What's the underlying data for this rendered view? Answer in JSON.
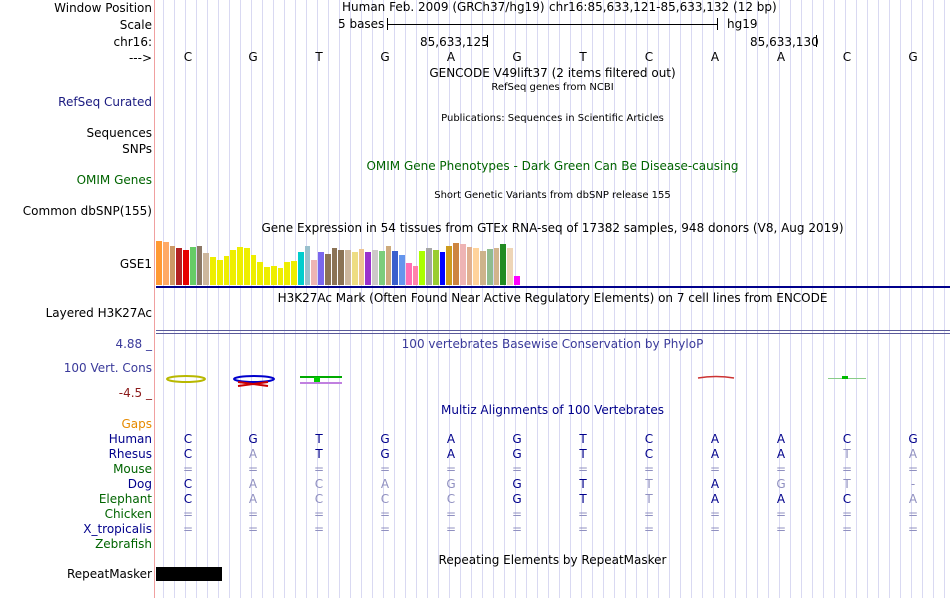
{
  "header": {
    "window_position_label": "Window Position",
    "scale_label": "Scale",
    "chrom_label": "chr16:",
    "strand_label": "--->",
    "assembly": "Human Feb. 2009 (GRCh37/hg19)",
    "position": "chr16:85,633,121-85,633,132 (12 bp)",
    "scale_text": "5 bases",
    "scale_db": "hg19",
    "coord1": "85,633,125",
    "coord2": "85,633,130"
  },
  "sequence": [
    "C",
    "G",
    "T",
    "G",
    "A",
    "G",
    "T",
    "C",
    "A",
    "A",
    "C",
    "G"
  ],
  "tracks": {
    "gencode_title": "GENCODE V49lift37 (2 items filtered out)",
    "refseq_label": "RefSeq Curated",
    "refseq_title": "RefSeq genes from NCBI",
    "sequences_label": "Sequences",
    "publications_title": "Publications: Sequences in Scientific Articles",
    "snps_label": "SNPs",
    "omim_title": "OMIM Gene Phenotypes - Dark Green Can Be Disease-causing",
    "omim_label": "OMIM Genes",
    "dbsnp_title": "Short Genetic Variants from dbSNP release 155",
    "dbsnp_label": "Common dbSNP(155)",
    "gtex_title": "Gene Expression in 54 tissues from GTEx RNA-seq of 17382 samples, 948 donors (V8, Aug 2019)",
    "gtex_label": "GSE1",
    "h3k27_title": "H3K27Ac Mark (Often Found Near Active Regulatory Elements) on 7 cell lines from ENCODE",
    "h3k27_label": "Layered H3K27Ac",
    "cons_max": "4.88 _",
    "cons_title": "100 vertebrates Basewise Conservation by PhyloP",
    "cons_label": "100 Vert. Cons",
    "cons_min": "-4.5 _",
    "multiz_title": "Multiz Alignments of 100 Vertebrates",
    "gaps_label": "Gaps",
    "repeat_title": "Repeating Elements by RepeatMasker",
    "repeat_label": "RepeatMasker"
  },
  "species": [
    {
      "name": "Human",
      "color": "#00008b",
      "bases": [
        "C",
        "G",
        "T",
        "G",
        "A",
        "G",
        "T",
        "C",
        "A",
        "A",
        "C",
        "G"
      ]
    },
    {
      "name": "Rhesus",
      "color": "#00008b",
      "bases": [
        "C",
        "A",
        "T",
        "G",
        "A",
        "G",
        "T",
        "C",
        "A",
        "A",
        "T",
        "A"
      ]
    },
    {
      "name": "Mouse",
      "color": "#006400",
      "bases": [
        "=",
        "=",
        "=",
        "=",
        "=",
        "=",
        "=",
        "=",
        "=",
        "=",
        "=",
        "="
      ]
    },
    {
      "name": "Dog",
      "color": "#00008b",
      "bases": [
        "C",
        "A",
        "C",
        "A",
        "G",
        "G",
        "T",
        "T",
        "A",
        "G",
        "T",
        "-"
      ]
    },
    {
      "name": "Elephant",
      "color": "#006400",
      "bases": [
        "C",
        "A",
        "C",
        "C",
        "C",
        "G",
        "T",
        "T",
        "A",
        "A",
        "C",
        "A"
      ]
    },
    {
      "name": "Chicken",
      "color": "#006400",
      "bases": [
        "=",
        "=",
        "=",
        "=",
        "=",
        "=",
        "=",
        "=",
        "=",
        "=",
        "=",
        "="
      ]
    },
    {
      "name": "X_tropicalis",
      "color": "#00008b",
      "bases": [
        "=",
        "=",
        "=",
        "=",
        "=",
        "=",
        "=",
        "=",
        "=",
        "=",
        "=",
        "="
      ]
    },
    {
      "name": "Zebrafish",
      "color": "#006400",
      "bases": []
    }
  ],
  "gtex_values": [
    0.92,
    0.9,
    0.82,
    0.78,
    0.72,
    0.8,
    0.82,
    0.66,
    0.58,
    0.52,
    0.6,
    0.72,
    0.8,
    0.78,
    0.62,
    0.48,
    0.38,
    0.4,
    0.36,
    0.48,
    0.5,
    0.68,
    0.82,
    0.52,
    0.68,
    0.65,
    0.78,
    0.72,
    0.72,
    0.68,
    0.76,
    0.68,
    0.72,
    0.7,
    0.82,
    0.7,
    0.62,
    0.45,
    0.4,
    0.7,
    0.78,
    0.72,
    0.68,
    0.82,
    0.88,
    0.86,
    0.8,
    0.78,
    0.7,
    0.76,
    0.78,
    0.85,
    0.78,
    0.18
  ],
  "gtex_colors": [
    "#ff9933",
    "#ffaa66",
    "#cc9966",
    "#b22222",
    "#e60000",
    "#66cc66",
    "#8b7765",
    "#cdb79e",
    "#eeee00",
    "#eeee00",
    "#eeee00",
    "#eeee00",
    "#eeee00",
    "#eeee00",
    "#eeee00",
    "#eeee00",
    "#eeee00",
    "#eeee00",
    "#eeee00",
    "#eeee00",
    "#eeee00",
    "#00cdcd",
    "#9ac0cd",
    "#eeb4b4",
    "#7a67ee",
    "#8b7355",
    "#8b7355",
    "#8b7355",
    "#cdb79e",
    "#eedd82",
    "#eec591",
    "#9a32cd",
    "#cdc9c9",
    "#7ccd7c",
    "#cdaa7d",
    "#3a5fcd",
    "#6495ed",
    "#ff6eb4",
    "#ff82ab",
    "#aaff00",
    "#a6a6a6",
    "#9acd32",
    "#0000ff",
    "#cd9b1d",
    "#cd853f",
    "#eeb4b4",
    "#e0b090",
    "#ffd39b",
    "#cdb38b",
    "#8fbc8f",
    "#d2b48c",
    "#228b22",
    "#eed5b7",
    "#ff00ff"
  ]
}
